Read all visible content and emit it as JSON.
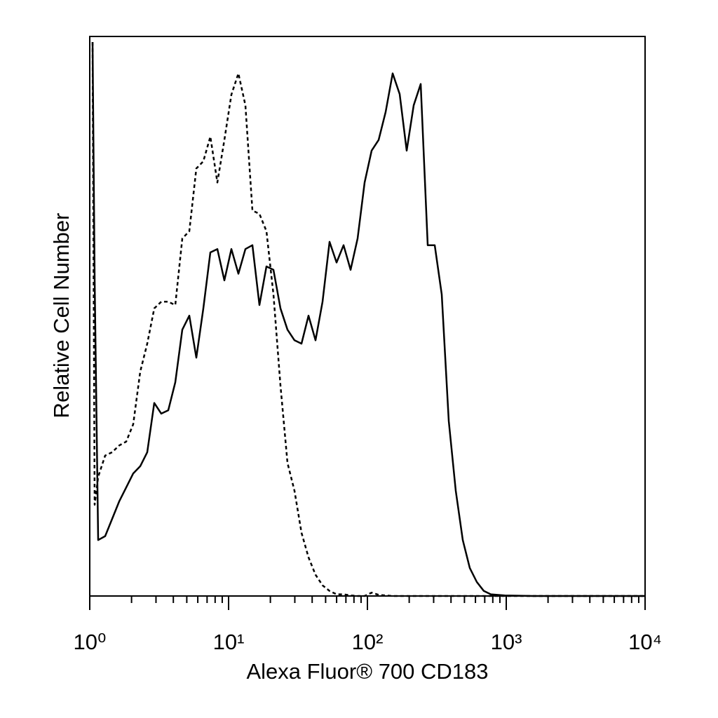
{
  "chart_data": {
    "type": "line",
    "xlabel": "Alexa Fluor® 700 CD183",
    "ylabel": "Relative Cell Number",
    "xscale": "log",
    "xlim": [
      1,
      10000
    ],
    "xticks": [
      {
        "value": 1,
        "label": "10⁰"
      },
      {
        "value": 10,
        "label": "10¹"
      },
      {
        "value": 100,
        "label": "10²"
      },
      {
        "value": 1000,
        "label": "10³"
      },
      {
        "value": 10000,
        "label": "10⁴"
      }
    ],
    "xminorticks": [
      2,
      3,
      4,
      5,
      6,
      7,
      8,
      9,
      20,
      30,
      40,
      50,
      60,
      70,
      80,
      90,
      200,
      300,
      400,
      500,
      600,
      700,
      800,
      900,
      2000,
      3000,
      4000,
      5000,
      6000,
      7000,
      8000,
      9000
    ],
    "ylim": [
      0,
      100
    ],
    "x": [
      1.048,
      1.085,
      1.15,
      1.291,
      1.451,
      1.63,
      1.831,
      2.057,
      2.31,
      2.595,
      2.915,
      3.275,
      3.679,
      4.133,
      4.642,
      5.214,
      5.857,
      6.579,
      7.391,
      8.302,
      9.326,
      10.48,
      11.77,
      13.22,
      14.85,
      16.68,
      18.74,
      21.05,
      23.64,
      26.56,
      29.83,
      33.51,
      37.65,
      42.29,
      47.51,
      53.37,
      59.95,
      67.34,
      75.65,
      84.98,
      95.46,
      107.2,
      120.4,
      135.3,
      152,
      170.7,
      191.8,
      215.4,
      242,
      271.9,
      305.4,
      343.1,
      385.4,
      432.9,
      486.3,
      546.3,
      613.7,
      689.4,
      774.3,
      977,
      1556,
      2477,
      4977,
      10000
    ],
    "series": [
      {
        "color": "#000000",
        "dashed": false,
        "values": [
          99,
          56.4,
          10,
          10.7,
          13.8,
          16.9,
          19.4,
          21.9,
          23.2,
          25.7,
          34.5,
          32.6,
          33.2,
          38.2,
          47.6,
          50.1,
          42.6,
          51.4,
          61.4,
          62,
          56.4,
          62,
          57.6,
          62,
          62.7,
          52,
          58.9,
          58.3,
          51.4,
          47.6,
          45.7,
          45.1,
          50.1,
          45.7,
          52.6,
          63.3,
          59.6,
          62.7,
          58.3,
          63.9,
          73.9,
          79.6,
          81.5,
          86.5,
          93.4,
          89.7,
          79.6,
          87.7,
          91.5,
          62.7,
          62.7,
          53.9,
          31.3,
          18.8,
          10,
          5,
          2.5,
          0.9,
          0.3,
          0.1,
          0,
          0,
          0,
          0
        ]
      },
      {
        "color": "#000000",
        "dashed": true,
        "values": [
          99,
          16.3,
          21.3,
          25.1,
          25.7,
          26.9,
          27.6,
          30.7,
          40.1,
          45.1,
          51.4,
          52.6,
          52.6,
          52,
          63.9,
          65.2,
          76.4,
          77.7,
          82.1,
          73.9,
          81.5,
          89.6,
          93.4,
          87.7,
          68.9,
          68.3,
          65.2,
          53.9,
          37.6,
          23.8,
          18.8,
          11.3,
          6.9,
          3.8,
          1.9,
          0.9,
          0.3,
          0.3,
          0.1,
          0,
          0,
          0.6,
          0.2,
          0.1,
          0,
          0,
          0,
          0,
          0,
          0,
          0,
          0,
          0,
          0,
          0,
          0,
          0,
          0,
          0,
          0,
          0,
          0,
          0,
          0
        ]
      }
    ]
  }
}
